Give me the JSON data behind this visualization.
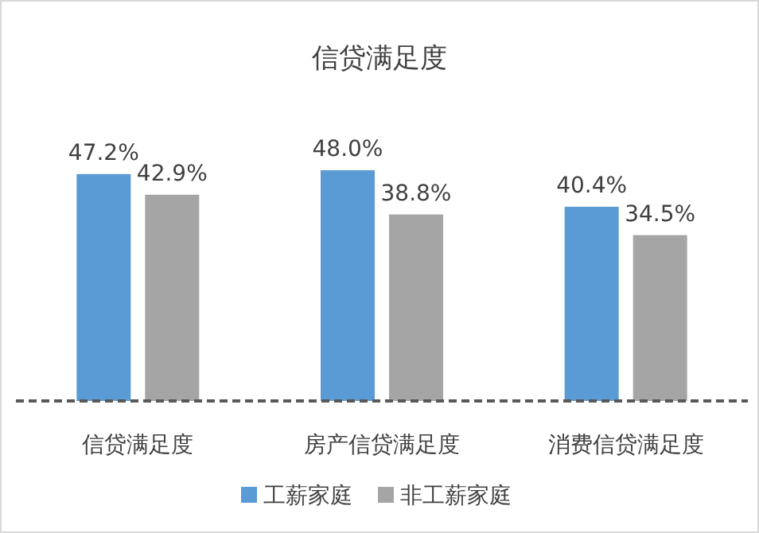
{
  "chart_data": {
    "type": "bar",
    "title": "信贷满足度",
    "categories": [
      "信贷满足度",
      "房产信贷满足度",
      "消费信贷满足度"
    ],
    "legend": "bottom",
    "series": [
      {
        "name": "工薪家庭",
        "color": "#5b9bd5",
        "values": [
          47.2,
          48.0,
          40.4
        ],
        "value_labels": [
          "47.2%",
          "48.0%",
          "40.4%"
        ]
      },
      {
        "name": "非工薪家庭",
        "color": "#a5a5a5",
        "values": [
          42.9,
          38.8,
          34.5
        ],
        "value_labels": [
          "42.9%",
          "38.8%",
          "34.5%"
        ]
      }
    ]
  }
}
